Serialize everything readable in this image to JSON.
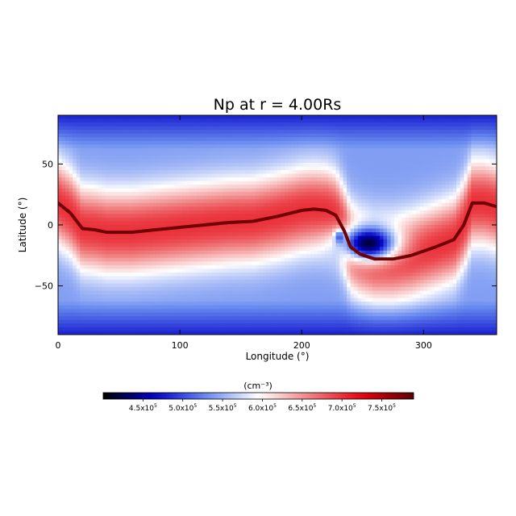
{
  "chart_data": {
    "type": "heatmap",
    "title": "Np at r = 4.00Rs",
    "xlabel": "Longitude (°)",
    "ylabel": "Latitude (°)",
    "xlim": [
      0,
      360
    ],
    "ylim": [
      -90,
      90
    ],
    "x_ticks": [
      0,
      100,
      200,
      300
    ],
    "y_ticks": [
      -50,
      0,
      50
    ],
    "x_tick_labels": [
      "0",
      "100",
      "200",
      "300"
    ],
    "y_tick_labels": [
      "−50",
      "0",
      "50"
    ],
    "grid": false,
    "colorbar": {
      "placement": "bottom",
      "label": "(cm⁻³)",
      "range": [
        400000,
        790000
      ],
      "ticks": [
        450000,
        500000,
        550000,
        600000,
        650000,
        700000,
        750000
      ],
      "tick_labels": [
        {
          "mant": "4.5x10",
          "exp": "5"
        },
        {
          "mant": "5.0x10",
          "exp": "5"
        },
        {
          "mant": "5.5x10",
          "exp": "5"
        },
        {
          "mant": "6.0x10",
          "exp": "5"
        },
        {
          "mant": "6.5x10",
          "exp": "5"
        },
        {
          "mant": "7.0x10",
          "exp": "5"
        },
        {
          "mant": "7.5x10",
          "exp": "5"
        }
      ],
      "colormap": [
        "#000000",
        "#0000c8",
        "#6a8cf0",
        "#ffffff",
        "#f08080",
        "#e60010",
        "#5a0000"
      ]
    },
    "field": {
      "background_high_lat": 540000,
      "band_peak": 700000,
      "current_sheet_value": 780000,
      "current_sheet_trace": [
        [
          0,
          18
        ],
        [
          10,
          10
        ],
        [
          20,
          -3
        ],
        [
          30,
          -4
        ],
        [
          40,
          -6
        ],
        [
          60,
          -6
        ],
        [
          80,
          -4
        ],
        [
          100,
          -2
        ],
        [
          120,
          0
        ],
        [
          140,
          2
        ],
        [
          160,
          3
        ],
        [
          180,
          7
        ],
        [
          200,
          12
        ],
        [
          210,
          13
        ],
        [
          220,
          12
        ],
        [
          228,
          8
        ],
        [
          235,
          -5
        ],
        [
          240,
          -18
        ],
        [
          248,
          -24
        ],
        [
          260,
          -28
        ],
        [
          275,
          -28
        ],
        [
          290,
          -25
        ],
        [
          310,
          -18
        ],
        [
          325,
          -12
        ],
        [
          333,
          0
        ],
        [
          340,
          18
        ],
        [
          350,
          18
        ],
        [
          360,
          15
        ]
      ],
      "depletion": {
        "lon": 255,
        "lat": -15,
        "min_value": 420000
      },
      "secondary_depletion": {
        "lon": 231,
        "lat": -10,
        "min_value": 500000
      }
    }
  }
}
